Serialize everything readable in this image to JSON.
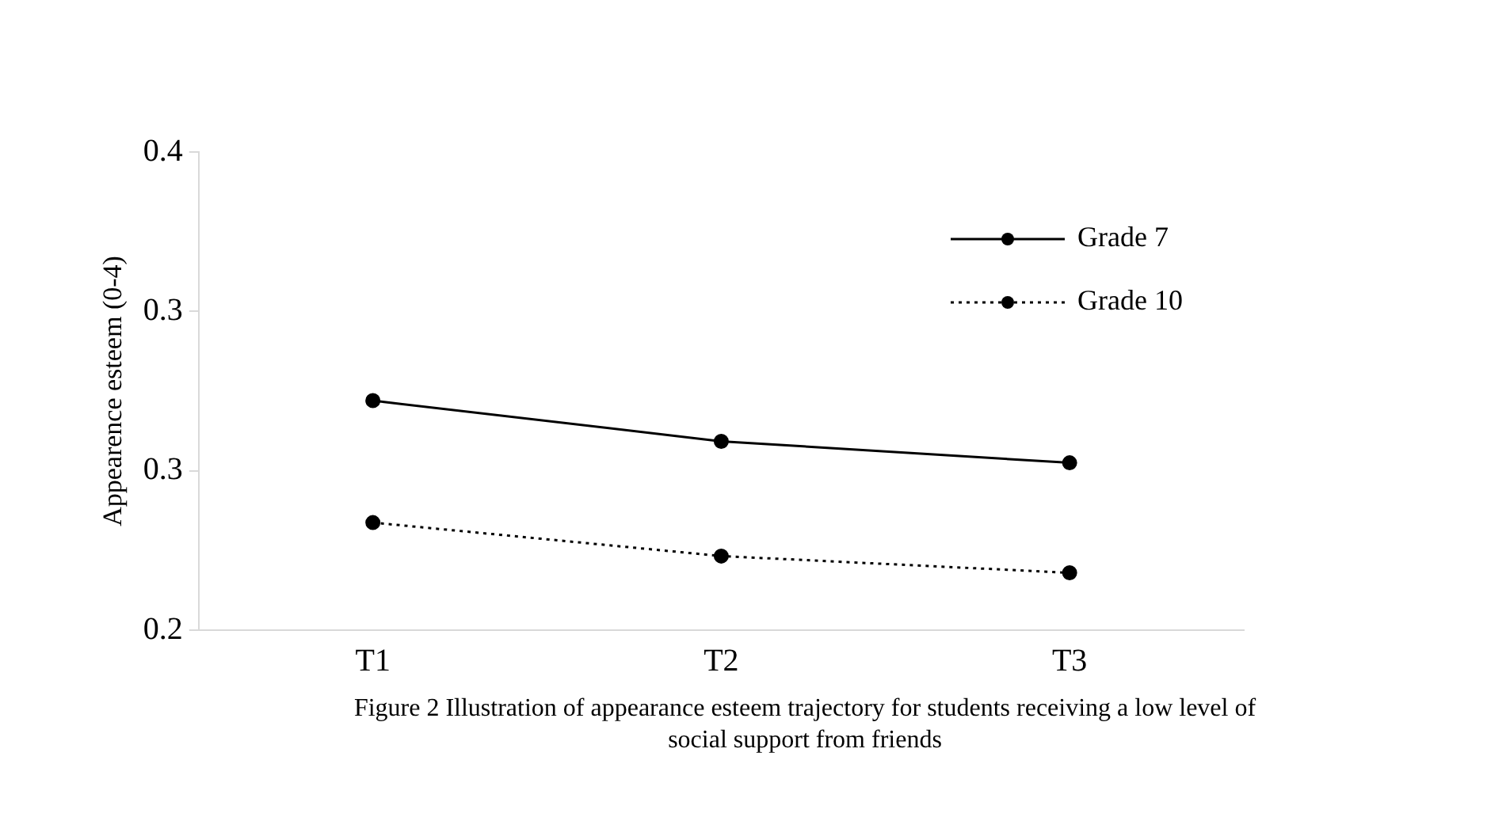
{
  "chart_data": {
    "type": "line",
    "ylabel": "Appearence esteem (0-4)",
    "categories": [
      "T1",
      "T2",
      "T3"
    ],
    "ylim": [
      0.2,
      0.4
    ],
    "yticks": [
      {
        "value": 0.2,
        "label": "0.2"
      },
      {
        "value": 0.2667,
        "label": "0.3"
      },
      {
        "value": 0.3333,
        "label": "0.3"
      },
      {
        "value": 0.4,
        "label": "0.4"
      }
    ],
    "series": [
      {
        "name": "Grade 7",
        "color": "#000000",
        "line_style": "solid",
        "values": [
          0.296,
          0.279,
          0.27
        ]
      },
      {
        "name": "Grade 10",
        "color": "#000000",
        "line_style": "dotted",
        "values": [
          0.245,
          0.231,
          0.224
        ]
      }
    ],
    "marker": "circle",
    "legend": "top right",
    "annotations": [
      "Figure 2 Illustration  of appearance  esteem  trajectory  for  students  receiving a low  level  of social  support  from  friends"
    ]
  }
}
